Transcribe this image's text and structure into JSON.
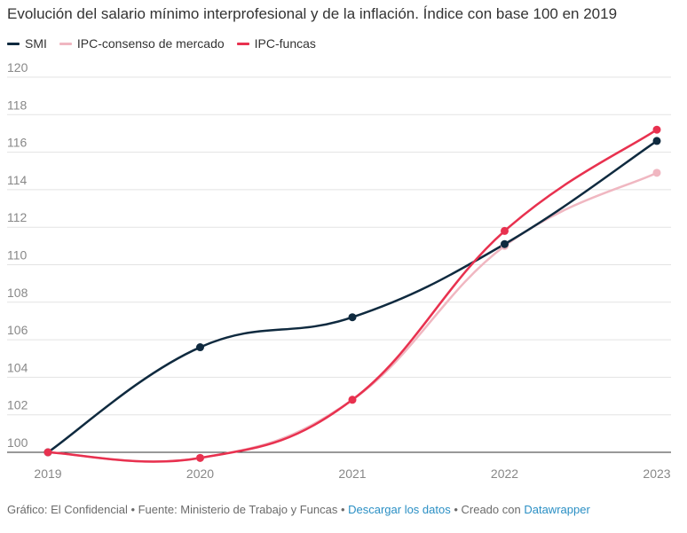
{
  "title": "Evolución del salario mínimo interprofesional y de la inflación. Índice con base 100 en 2019",
  "legend": [
    {
      "label": "SMI",
      "color": "#0f2a3f"
    },
    {
      "label": "IPC-consenso de mercado",
      "color": "#f0b7c1"
    },
    {
      "label": "IPC-funcas",
      "color": "#e8314f"
    }
  ],
  "footer": {
    "text1": "Gráfico: El Confidencial • Fuente: Ministerio de Trabajo y Funcas • ",
    "link1": "Descargar los datos",
    "text2": " • Creado con ",
    "link2": "Datawrapper"
  },
  "chart_data": {
    "type": "line",
    "x": [
      "2019",
      "2020",
      "2021",
      "2022",
      "2023"
    ],
    "ylim": [
      100,
      120
    ],
    "y_ticks": [
      100,
      102,
      104,
      106,
      108,
      110,
      112,
      114,
      116,
      118,
      120
    ],
    "grid": true,
    "legend_position": "top-left",
    "series": [
      {
        "name": "SMI",
        "color": "#0f2a3f",
        "values": [
          100,
          105.6,
          107.2,
          111.1,
          116.6
        ]
      },
      {
        "name": "IPC-consenso de mercado",
        "color": "#f0b7c1",
        "values": [
          100,
          99.7,
          102.8,
          111.0,
          114.9
        ]
      },
      {
        "name": "IPC-funcas",
        "color": "#e8314f",
        "values": [
          100,
          99.7,
          102.8,
          111.8,
          117.2
        ]
      }
    ]
  }
}
